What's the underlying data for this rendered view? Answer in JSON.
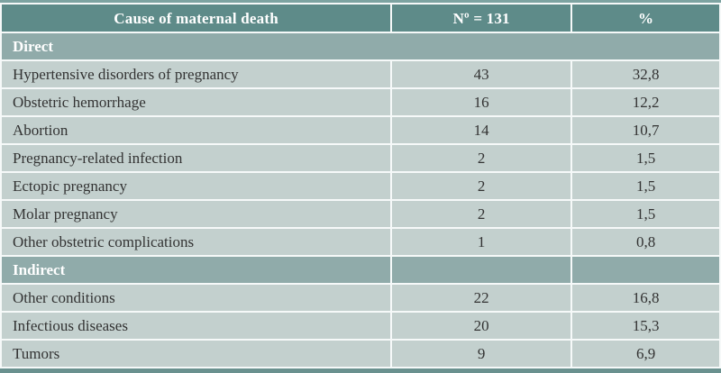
{
  "table": {
    "columns": {
      "cause": "Cause of maternal death",
      "n": "Nº = 131",
      "pct": "%"
    },
    "sections": [
      {
        "label": "Direct",
        "rows": [
          {
            "cause": "Hypertensive disorders of pregnancy",
            "n": "43",
            "pct": "32,8"
          },
          {
            "cause": "Obstetric hemorrhage",
            "n": "16",
            "pct": "12,2"
          },
          {
            "cause": "Abortion",
            "n": "14",
            "pct": "10,7"
          },
          {
            "cause": "Pregnancy-related infection",
            "n": "2",
            "pct": "1,5"
          },
          {
            "cause": "Ectopic pregnancy",
            "n": "2",
            "pct": "1,5"
          },
          {
            "cause": "Molar pregnancy",
            "n": "2",
            "pct": "1,5"
          },
          {
            "cause": "Other obstetric complications",
            "n": "1",
            "pct": "0,8"
          }
        ]
      },
      {
        "label": "Indirect",
        "rows": [
          {
            "cause": "Other conditions",
            "n": "22",
            "pct": "16,8"
          },
          {
            "cause": "Infectious diseases",
            "n": "20",
            "pct": "15,3"
          },
          {
            "cause": "Tumors",
            "n": "9",
            "pct": "6,9"
          }
        ]
      }
    ]
  },
  "colors": {
    "header_bg": "#5e8b89",
    "section_bg": "#90abaa",
    "row_bg": "#c3d0ce",
    "gridline": "#f6f9f9",
    "accent_top": "#7da3a1",
    "accent_bottom": "#6a918f",
    "header_text": "#ffffff",
    "body_text": "#333333"
  },
  "chart_data": {
    "type": "table",
    "title": "Cause of maternal death",
    "columns": [
      "Cause of maternal death",
      "Nº = 131",
      "%"
    ],
    "rows": [
      [
        "Direct",
        null,
        null
      ],
      [
        "Hypertensive disorders of pregnancy",
        43,
        32.8
      ],
      [
        "Obstetric hemorrhage",
        16,
        12.2
      ],
      [
        "Abortion",
        14,
        10.7
      ],
      [
        "Pregnancy-related infection",
        2,
        1.5
      ],
      [
        "Ectopic pregnancy",
        2,
        1.5
      ],
      [
        "Molar pregnancy",
        2,
        1.5
      ],
      [
        "Other obstetric complications",
        1,
        0.8
      ],
      [
        "Indirect",
        null,
        null
      ],
      [
        "Other conditions",
        22,
        16.8
      ],
      [
        "Infectious diseases",
        20,
        15.3
      ],
      [
        "Tumors",
        9,
        6.9
      ]
    ]
  }
}
